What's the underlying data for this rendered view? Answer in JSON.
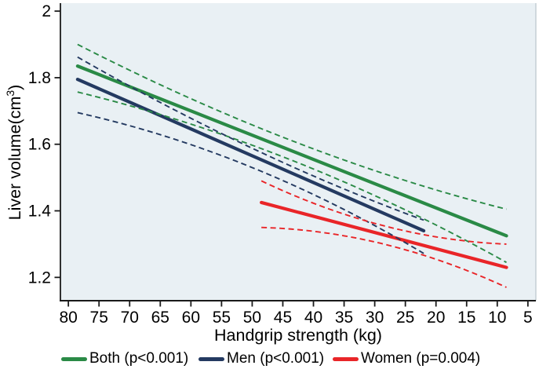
{
  "chart_data": {
    "type": "line",
    "title": "",
    "xlabel": "Handgrip strength (kg)",
    "ylabel_pre": "Liver volume(cm",
    "ylabel_sup": "3",
    "ylabel_post": ")",
    "x_axis": {
      "reversed": true,
      "unit": "kg",
      "left_value": 81.3,
      "right_value": 3.7,
      "ticks": [
        80,
        75,
        70,
        65,
        60,
        55,
        50,
        45,
        40,
        35,
        30,
        25,
        20,
        15,
        10,
        5
      ]
    },
    "y_axis": {
      "unit": "cm3",
      "top_value": 2.024,
      "bottom_value": 1.13,
      "tick_values": [
        2,
        1.8,
        1.6,
        1.4,
        1.2
      ],
      "tick_labels": [
        "2",
        "1.8",
        "1.6",
        "1.4",
        "1.2"
      ]
    },
    "colors": {
      "plot_bg": "#e9f0f4",
      "axis": "#1a1a1a",
      "right_border": "#b9c6cc",
      "both": "#2a8a46",
      "men": "#243a61",
      "women": "#e92528"
    },
    "series": [
      {
        "id": "both",
        "name": "Both (p<0.001)",
        "color": "#2a8a46",
        "solid": {
          "x": [
            78.5,
            8.5
          ],
          "y": [
            1.835,
            1.325
          ]
        },
        "ci_upper": {
          "x": [
            78.5,
            43,
            8.5
          ],
          "y": [
            1.9,
            1.607,
            1.405
          ]
        },
        "ci_lower": {
          "x": [
            78.5,
            43,
            8.5
          ],
          "y": [
            1.757,
            1.548,
            1.245
          ]
        }
      },
      {
        "id": "men",
        "name": "Men (p<0.001)",
        "color": "#243a61",
        "solid": {
          "x": [
            78.5,
            22
          ],
          "y": [
            1.795,
            1.34
          ]
        },
        "ci_upper": {
          "x": [
            78.5,
            50,
            22
          ],
          "y": [
            1.862,
            1.588,
            1.372
          ]
        },
        "ci_lower": {
          "x": [
            78.5,
            50,
            22
          ],
          "y": [
            1.695,
            1.53,
            1.272
          ]
        }
      },
      {
        "id": "women",
        "name": "Women (p=0.004)",
        "color": "#e92528",
        "solid": {
          "x": [
            48.5,
            8.5
          ],
          "y": [
            1.425,
            1.23
          ]
        },
        "ci_upper": {
          "x": [
            48.5,
            28.5,
            8.5
          ],
          "y": [
            1.49,
            1.355,
            1.3
          ]
        },
        "ci_lower": {
          "x": [
            48.5,
            28.5,
            8.5
          ],
          "y": [
            1.35,
            1.3,
            1.17
          ]
        }
      }
    ],
    "legend": [
      {
        "label": "Both (p<0.001)",
        "color": "#2a8a46"
      },
      {
        "label": "Men (p<0.001)",
        "color": "#243a61"
      },
      {
        "label": "Women (p=0.004)",
        "color": "#e92528"
      }
    ]
  }
}
